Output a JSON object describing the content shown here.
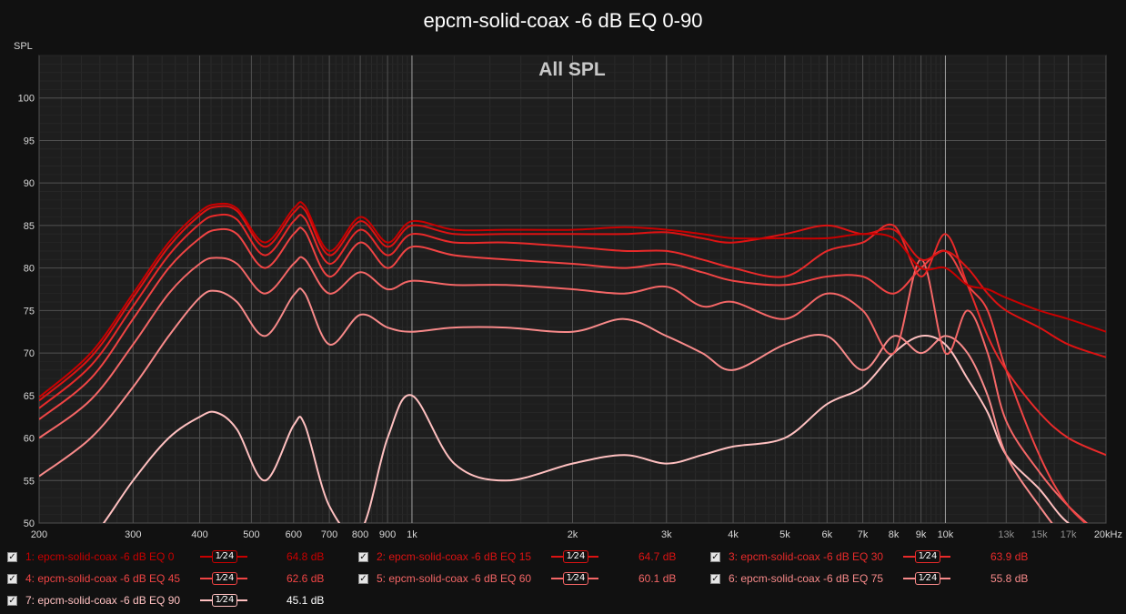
{
  "chart_data": {
    "type": "line",
    "title": "epcm-solid-coax -6 dB EQ 0-90",
    "subtitle": "All SPL",
    "ylabel": "SPL",
    "xscale": "log",
    "xlim": [
      200,
      20000
    ],
    "ylim": [
      50,
      105
    ],
    "grid": true,
    "x_ticks": [
      {
        "v": 200,
        "label": "200"
      },
      {
        "v": 300,
        "label": "300"
      },
      {
        "v": 400,
        "label": "400"
      },
      {
        "v": 500,
        "label": "500"
      },
      {
        "v": 600,
        "label": "600"
      },
      {
        "v": 700,
        "label": "700"
      },
      {
        "v": 800,
        "label": "800"
      },
      {
        "v": 900,
        "label": "900"
      },
      {
        "v": 1000,
        "label": "1k"
      },
      {
        "v": 2000,
        "label": "2k"
      },
      {
        "v": 3000,
        "label": "3k"
      },
      {
        "v": 4000,
        "label": "4k"
      },
      {
        "v": 5000,
        "label": "5k"
      },
      {
        "v": 6000,
        "label": "6k"
      },
      {
        "v": 7000,
        "label": "7k"
      },
      {
        "v": 8000,
        "label": "8k"
      },
      {
        "v": 9000,
        "label": "9k"
      },
      {
        "v": 10000,
        "label": "10k"
      },
      {
        "v": 13000,
        "label": "13k"
      },
      {
        "v": 15000,
        "label": "15k"
      },
      {
        "v": 17000,
        "label": "17k"
      },
      {
        "v": 20000,
        "label": "20kHz"
      }
    ],
    "y_ticks": [
      {
        "v": 50,
        "label": "50"
      },
      {
        "v": 55,
        "label": "55"
      },
      {
        "v": 60,
        "label": "60"
      },
      {
        "v": 65,
        "label": "65"
      },
      {
        "v": 70,
        "label": "70"
      },
      {
        "v": 75,
        "label": "75"
      },
      {
        "v": 80,
        "label": "80"
      },
      {
        "v": 85,
        "label": "85"
      },
      {
        "v": 90,
        "label": "90"
      },
      {
        "v": 95,
        "label": "95"
      },
      {
        "v": 100,
        "label": "100"
      }
    ],
    "x": [
      200,
      250,
      300,
      350,
      400,
      430,
      470,
      530,
      600,
      630,
      700,
      800,
      900,
      1000,
      1200,
      1500,
      2000,
      2500,
      3000,
      3500,
      4000,
      5000,
      6000,
      7000,
      8000,
      9000,
      10000,
      11000,
      12000,
      13000,
      15000,
      17000,
      20000
    ],
    "series": [
      {
        "name": "1: epcm-solid-coax -6 dB EQ 0",
        "color": "#c80000",
        "level": "64.8 dB",
        "values": [
          64.8,
          70,
          77,
          83,
          86.6,
          87.5,
          87,
          83,
          87,
          87.3,
          82,
          86,
          83,
          85.5,
          84.5,
          84.5,
          84.5,
          84.8,
          84.5,
          84,
          83.5,
          83.5,
          83.5,
          84,
          83.5,
          80,
          80,
          78,
          77.5,
          76.5,
          75,
          74,
          72.5
        ]
      },
      {
        "name": "2: epcm-solid-coax -6 dB EQ 15",
        "color": "#dc1212",
        "level": "64.7 dB",
        "values": [
          64.4,
          69.5,
          76.5,
          82.5,
          86.2,
          87.2,
          86.7,
          82.5,
          86.5,
          86.8,
          81.5,
          85.5,
          82.5,
          85,
          84,
          84,
          84,
          84,
          84.2,
          83.5,
          83,
          84,
          85,
          84,
          84.5,
          81,
          82,
          80,
          77,
          75,
          73,
          71,
          69.5
        ]
      },
      {
        "name": "3: epcm-solid-coax -6 dB EQ 30",
        "color": "#e82a2a",
        "level": "63.9 dB",
        "values": [
          63.5,
          68.5,
          75.5,
          81.5,
          85.2,
          86.2,
          85.7,
          81.5,
          85.5,
          85.8,
          80.5,
          84.5,
          81.5,
          84,
          83,
          83,
          82.5,
          82,
          82,
          81,
          80,
          79,
          82,
          83,
          85,
          79,
          84,
          78,
          72,
          68,
          63,
          60,
          58
        ]
      },
      {
        "name": "4: epcm-solid-coax -6 dB EQ 45",
        "color": "#f04444",
        "level": "62.6 dB",
        "values": [
          62.2,
          67,
          74,
          80,
          83.5,
          84.5,
          84,
          80,
          84,
          84.3,
          79,
          83,
          80,
          82.5,
          81.5,
          81,
          80.5,
          80,
          80.5,
          79.5,
          78.5,
          78,
          79,
          79,
          77,
          80,
          82,
          78,
          75,
          68,
          58,
          52,
          48
        ]
      },
      {
        "name": "5: epcm-solid-coax -6 dB EQ 60",
        "color": "#f46666",
        "level": "60.1 dB",
        "values": [
          60,
          64.5,
          71,
          77,
          80.5,
          81.2,
          80.5,
          77,
          80.5,
          81,
          77,
          79.5,
          77.5,
          78.5,
          78,
          78,
          77.5,
          77,
          77.8,
          75.5,
          76,
          74,
          77,
          75,
          70,
          81,
          70,
          75,
          70,
          62,
          56,
          52,
          48
        ]
      },
      {
        "name": "6: epcm-solid-coax -6 dB EQ 75",
        "color": "#f88a8a",
        "level": "55.8 dB",
        "values": [
          55.5,
          60,
          66,
          72,
          76.5,
          77.3,
          76,
          72,
          76.8,
          77,
          71,
          74.5,
          73,
          72.5,
          73,
          73,
          72.5,
          74,
          72,
          70,
          68,
          71,
          72,
          68,
          72,
          70,
          72,
          70,
          65,
          58,
          52,
          48,
          46
        ]
      },
      {
        "name": "7: epcm-solid-coax -6 dB EQ 90",
        "color": "#ffc0c0",
        "level": "45.1 dB",
        "values": [
          42,
          48,
          55,
          60,
          62.5,
          63,
          61,
          55,
          61.5,
          61.5,
          52,
          49,
          60,
          65,
          57,
          55,
          57,
          58,
          57,
          58,
          59,
          60,
          64,
          66,
          70,
          72,
          71,
          67,
          63,
          58,
          54,
          50,
          48
        ]
      }
    ]
  },
  "legend": {
    "items": [
      {
        "label": "1: epcm-solid-coax -6 dB EQ 0",
        "level": "64.8 dB",
        "smoothing": "1⁄24"
      },
      {
        "label": "2: epcm-solid-coax -6 dB EQ 15",
        "level": "64.7 dB",
        "smoothing": "1⁄24"
      },
      {
        "label": "3: epcm-solid-coax -6 dB EQ 30",
        "level": "63.9 dB",
        "smoothing": "1⁄24"
      },
      {
        "label": "4: epcm-solid-coax -6 dB EQ 45",
        "level": "62.6 dB",
        "smoothing": "1⁄24"
      },
      {
        "label": "5: epcm-solid-coax -6 dB EQ 60",
        "level": "60.1 dB",
        "smoothing": "1⁄24"
      },
      {
        "label": "6: epcm-solid-coax -6 dB EQ 75",
        "level": "55.8 dB",
        "smoothing": "1⁄24"
      },
      {
        "label": "7: epcm-solid-coax -6 dB EQ 90",
        "level": "45.1 dB",
        "smoothing": "1⁄24"
      }
    ],
    "checkbox_glyph": "✓"
  }
}
